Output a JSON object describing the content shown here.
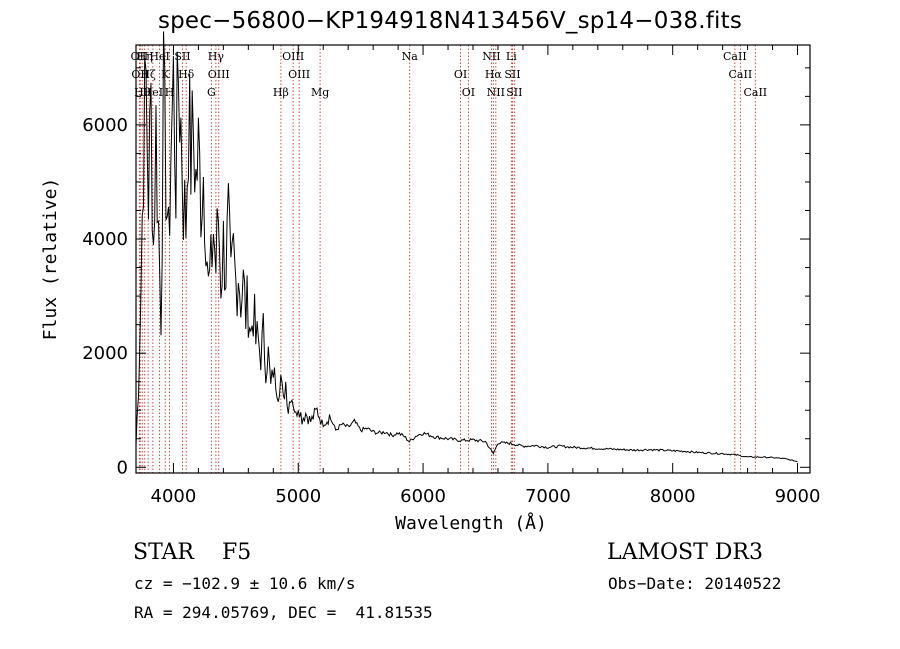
{
  "chart_data": {
    "type": "line",
    "title": "spec−56800−KP194918N413456V_sp14−038.fits",
    "xlabel": "Wavelength (Å)",
    "ylabel": "Flux (relative)",
    "xlim": [
      3700,
      9100
    ],
    "ylim": [
      -100,
      7400
    ],
    "xticks": [
      4000,
      5000,
      6000,
      7000,
      8000,
      9000
    ],
    "yticks": [
      0,
      2000,
      4000,
      6000
    ],
    "series": [
      {
        "name": "flux",
        "x": [
          3700,
          3720,
          3740,
          3760,
          3780,
          3800,
          3820,
          3840,
          3860,
          3880,
          3900,
          3920,
          3940,
          3960,
          3980,
          4000,
          4020,
          4040,
          4060,
          4080,
          4100,
          4120,
          4140,
          4160,
          4180,
          4200,
          4220,
          4240,
          4260,
          4280,
          4300,
          4320,
          4340,
          4360,
          4380,
          4400,
          4420,
          4440,
          4460,
          4480,
          4500,
          4520,
          4540,
          4560,
          4580,
          4600,
          4620,
          4640,
          4660,
          4680,
          4700,
          4720,
          4740,
          4760,
          4780,
          4800,
          4820,
          4840,
          4860,
          4880,
          4900,
          4920,
          4940,
          4960,
          4980,
          5000,
          5030,
          5060,
          5100,
          5150,
          5200,
          5250,
          5300,
          5350,
          5400,
          5450,
          5500,
          5550,
          5600,
          5650,
          5700,
          5750,
          5800,
          5850,
          5890,
          5950,
          6000,
          6100,
          6200,
          6300,
          6400,
          6500,
          6563,
          6600,
          6700,
          6800,
          6900,
          7000,
          7100,
          7200,
          7300,
          7400,
          7500,
          7600,
          7700,
          7800,
          7900,
          8000,
          8100,
          8200,
          8300,
          8400,
          8500,
          8600,
          8700,
          8800,
          8900,
          9000
        ],
        "values": [
          400,
          1400,
          3200,
          5600,
          6700,
          4800,
          6300,
          3900,
          5900,
          4200,
          2700,
          6400,
          5200,
          3800,
          5600,
          6700,
          5100,
          6900,
          6000,
          4700,
          4300,
          6200,
          5400,
          5900,
          5000,
          5500,
          4800,
          5200,
          4400,
          3100,
          3400,
          4200,
          3500,
          4400,
          3300,
          3900,
          3500,
          4300,
          3100,
          3700,
          3200,
          3500,
          3000,
          3200,
          2700,
          2900,
          2300,
          2800,
          2200,
          2200,
          1900,
          2300,
          1700,
          2000,
          1400,
          1700,
          1500,
          1300,
          1600,
          1150,
          1500,
          1000,
          1300,
          1150,
          900,
          1100,
          850,
          950,
          800,
          1000,
          750,
          900,
          650,
          750,
          700,
          800,
          650,
          680,
          620,
          600,
          620,
          560,
          600,
          540,
          450,
          560,
          600,
          530,
          500,
          470,
          480,
          450,
          240,
          430,
          420,
          370,
          380,
          350,
          370,
          350,
          340,
          330,
          320,
          310,
          300,
          310,
          300,
          290,
          280,
          260,
          250,
          240,
          220,
          180,
          180,
          170,
          150,
          100
        ]
      }
    ],
    "lines": [
      {
        "x": 3727,
        "label": "OII"
      },
      {
        "x": 3734,
        "label": "OII"
      },
      {
        "x": 3750,
        "label": "Hθ"
      },
      {
        "x": 3770,
        "label": "Hη"
      },
      {
        "x": 3797,
        "label": "Hζ"
      },
      {
        "x": 3835,
        "label": "HeI"
      },
      {
        "x": 3889,
        "label": "HeI"
      },
      {
        "x": 3934,
        "label": "K"
      },
      {
        "x": 3969,
        "label": "H"
      },
      {
        "x": 4072,
        "label": "SII"
      },
      {
        "x": 4102,
        "label": "Hδ"
      },
      {
        "x": 4304,
        "label": "G"
      },
      {
        "x": 4340,
        "label": "Hγ"
      },
      {
        "x": 4363,
        "label": "OIII"
      },
      {
        "x": 4861,
        "label": "Hβ"
      },
      {
        "x": 4959,
        "label": "OIII"
      },
      {
        "x": 5007,
        "label": "OIII"
      },
      {
        "x": 5175,
        "label": "Mg"
      },
      {
        "x": 5893,
        "label": "Na"
      },
      {
        "x": 6300,
        "label": "OI"
      },
      {
        "x": 6363,
        "label": "OI"
      },
      {
        "x": 6548,
        "label": "NII"
      },
      {
        "x": 6563,
        "label": "Hα"
      },
      {
        "x": 6583,
        "label": "NII"
      },
      {
        "x": 6707,
        "label": "Li"
      },
      {
        "x": 6716,
        "label": "SII"
      },
      {
        "x": 6731,
        "label": "SII"
      },
      {
        "x": 8498,
        "label": "CaII"
      },
      {
        "x": 8542,
        "label": "CaII"
      },
      {
        "x": 8662,
        "label": "CaII"
      }
    ]
  },
  "footer": {
    "object_class": "STAR    F5",
    "survey": "LAMOST DR3",
    "cz": "cz = −102.9 ± 10.6 km/s",
    "obs_date": "Obs−Date: 20140522",
    "ra_dec": "RA = 294.05769, DEC =  41.81535"
  }
}
